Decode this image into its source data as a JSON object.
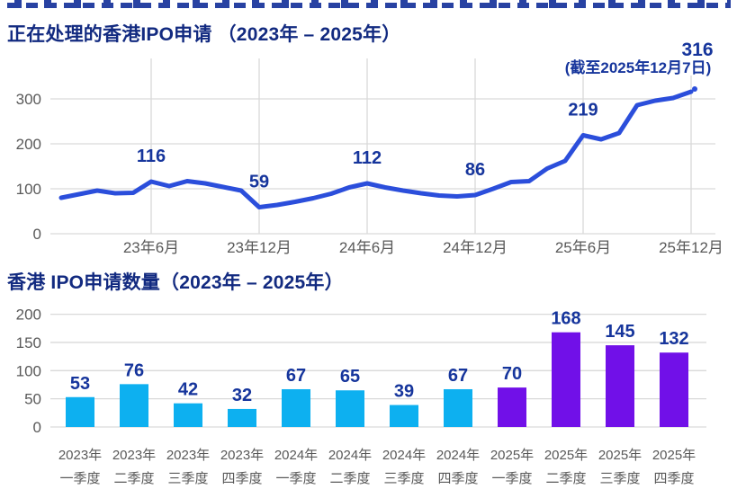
{
  "colors": {
    "title_navy": "#122a80",
    "label_navy": "#16359c",
    "line_blue": "#2b4edb",
    "bar_cyan": "#0db0f0",
    "bar_purple": "#7110e8",
    "grid_gray": "#d9d9d9",
    "axis_text_gray": "#595959"
  },
  "chart_data": [
    {
      "type": "line",
      "title": "正在处理的香港IPO申请 （2023年 – 2025年）",
      "x_tick_labels": [
        "23年6月",
        "23年12月",
        "24年6月",
        "24年12月",
        "25年6月",
        "25年12月"
      ],
      "y_tick_labels": [
        "0",
        "100",
        "200",
        "300"
      ],
      "y_ticks": [
        0,
        100,
        200,
        300
      ],
      "ylim": [
        0,
        390
      ],
      "x_months": [
        "2023-01",
        "2023-02",
        "2023-03",
        "2023-04",
        "2023-05",
        "2023-06",
        "2023-07",
        "2023-08",
        "2023-09",
        "2023-10",
        "2023-11",
        "2023-12",
        "2024-01",
        "2024-02",
        "2024-03",
        "2024-04",
        "2024-05",
        "2024-06",
        "2024-07",
        "2024-08",
        "2024-09",
        "2024-10",
        "2024-11",
        "2024-12",
        "2025-01",
        "2025-02",
        "2025-03",
        "2025-04",
        "2025-05",
        "2025-06",
        "2025-07",
        "2025-08",
        "2025-09",
        "2025-10",
        "2025-11",
        "2025-12"
      ],
      "monthly_values_estimated": [
        80,
        88,
        96,
        90,
        91,
        116,
        106,
        117,
        112,
        104,
        96,
        59,
        64,
        71,
        79,
        89,
        103,
        112,
        103,
        96,
        90,
        85,
        83,
        86,
        100,
        115,
        117,
        145,
        162,
        219,
        210,
        224,
        286,
        296,
        302,
        316
      ],
      "labeled_points": [
        {
          "month": "2023-06",
          "index": 5,
          "label": "116"
        },
        {
          "month": "2023-12",
          "index": 11,
          "label": "59"
        },
        {
          "month": "2024-06",
          "index": 17,
          "label": "112"
        },
        {
          "month": "2024-12",
          "index": 23,
          "label": "86"
        },
        {
          "month": "2025-06",
          "index": 29,
          "label": "219"
        }
      ],
      "end_annotation": {
        "value": "316",
        "note": "(截至2025年12月7日)"
      }
    },
    {
      "type": "bar",
      "title": "香港 IPO申请数量（2023年 – 2025年）",
      "categories": [
        {
          "line1": "2023年",
          "line2": "一季度"
        },
        {
          "line1": "2023年",
          "line2": "二季度"
        },
        {
          "line1": "2023年",
          "line2": "三季度"
        },
        {
          "line1": "2023年",
          "line2": "四季度"
        },
        {
          "line1": "2024年",
          "line2": "一季度"
        },
        {
          "line1": "2024年",
          "line2": "二季度"
        },
        {
          "line1": "2024年",
          "line2": "三季度"
        },
        {
          "line1": "2024年",
          "line2": "四季度"
        },
        {
          "line1": "2025年",
          "line2": "一季度"
        },
        {
          "line1": "2025年",
          "line2": "二季度"
        },
        {
          "line1": "2025年",
          "line2": "三季度"
        },
        {
          "line1": "2025年",
          "line2": "四季度"
        }
      ],
      "values": [
        53,
        76,
        42,
        32,
        67,
        65,
        39,
        67,
        70,
        168,
        145,
        132
      ],
      "bar_color_keys": [
        "cyan",
        "cyan",
        "cyan",
        "cyan",
        "cyan",
        "cyan",
        "cyan",
        "cyan",
        "purple",
        "purple",
        "purple",
        "purple"
      ],
      "y_tick_labels": [
        "0",
        "50",
        "100",
        "150",
        "200"
      ],
      "y_ticks": [
        0,
        50,
        100,
        150,
        200
      ],
      "ylim": [
        0,
        220
      ]
    }
  ]
}
